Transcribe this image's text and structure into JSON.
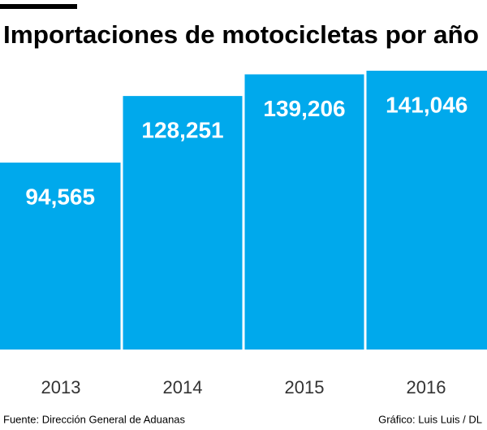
{
  "chart_data": {
    "type": "bar",
    "title": "Importaciones de motocicletas por año",
    "categories": [
      "2013",
      "2014",
      "2015",
      "2016"
    ],
    "values": [
      94565,
      128251,
      139206,
      141046
    ],
    "value_labels": [
      "94,565",
      "128,251",
      "139,206",
      "141,046"
    ],
    "color": "#00a9ec",
    "source": "Fuente: Dirección General de Aduanas",
    "credit": "Gráfico: Luis Luis / DL"
  }
}
